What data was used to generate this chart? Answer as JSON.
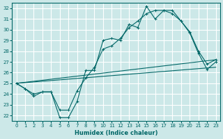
{
  "background_color": "#cce8e8",
  "grid_color": "#ffffff",
  "line_color": "#006666",
  "xlabel": "Humidex (Indice chaleur)",
  "xlim": [
    -0.5,
    23.5
  ],
  "ylim": [
    21.5,
    32.5
  ],
  "yticks": [
    22,
    23,
    24,
    25,
    26,
    27,
    28,
    29,
    30,
    31,
    32
  ],
  "xticks": [
    0,
    1,
    2,
    3,
    4,
    5,
    6,
    7,
    8,
    9,
    10,
    11,
    12,
    13,
    14,
    15,
    16,
    17,
    18,
    19,
    20,
    21,
    22,
    23
  ],
  "line1_y": [
    25.0,
    24.5,
    23.8,
    24.2,
    24.2,
    21.8,
    21.8,
    23.3,
    26.2,
    26.2,
    29.0,
    29.2,
    29.0,
    30.5,
    30.2,
    32.2,
    31.0,
    31.8,
    31.8,
    30.8,
    29.7,
    27.8,
    26.3,
    27.0
  ],
  "line2_y": [
    25.0,
    24.5,
    24.0,
    24.2,
    24.2,
    22.5,
    22.5,
    24.3,
    25.5,
    26.5,
    28.2,
    28.5,
    29.2,
    30.2,
    30.8,
    31.5,
    31.8,
    31.8,
    31.5,
    30.8,
    29.8,
    28.0,
    26.8,
    27.2
  ],
  "line3_y": [
    25.0,
    27.2
  ],
  "line4_y": [
    25.0,
    26.5
  ]
}
